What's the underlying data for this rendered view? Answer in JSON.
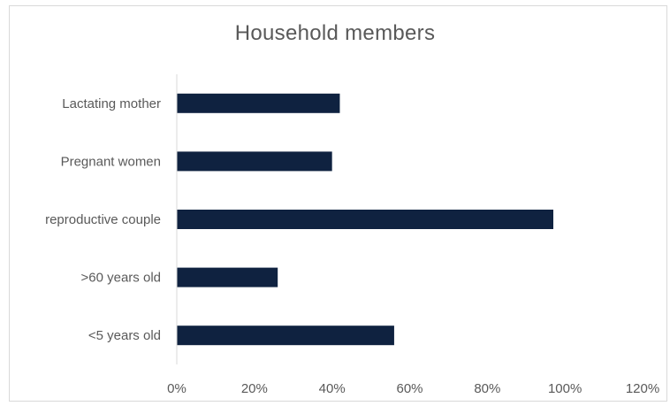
{
  "chart_data": {
    "type": "bar",
    "orientation": "horizontal",
    "title": "Household members",
    "categories": [
      "Lactating mother",
      "Pregnant women",
      "reproductive couple",
      ">60 years old",
      "<5 years old"
    ],
    "values": [
      0.42,
      0.4,
      0.97,
      0.26,
      0.56
    ],
    "xlim": [
      0,
      1.2
    ],
    "x_ticks": [
      0,
      0.2,
      0.4,
      0.6,
      0.8,
      1.0,
      1.2
    ],
    "x_tick_labels": [
      "0%",
      "20%",
      "40%",
      "60%",
      "80%",
      "100%",
      "120%"
    ],
    "grid": false,
    "legend": "none",
    "bar_color": "#0f2240"
  }
}
